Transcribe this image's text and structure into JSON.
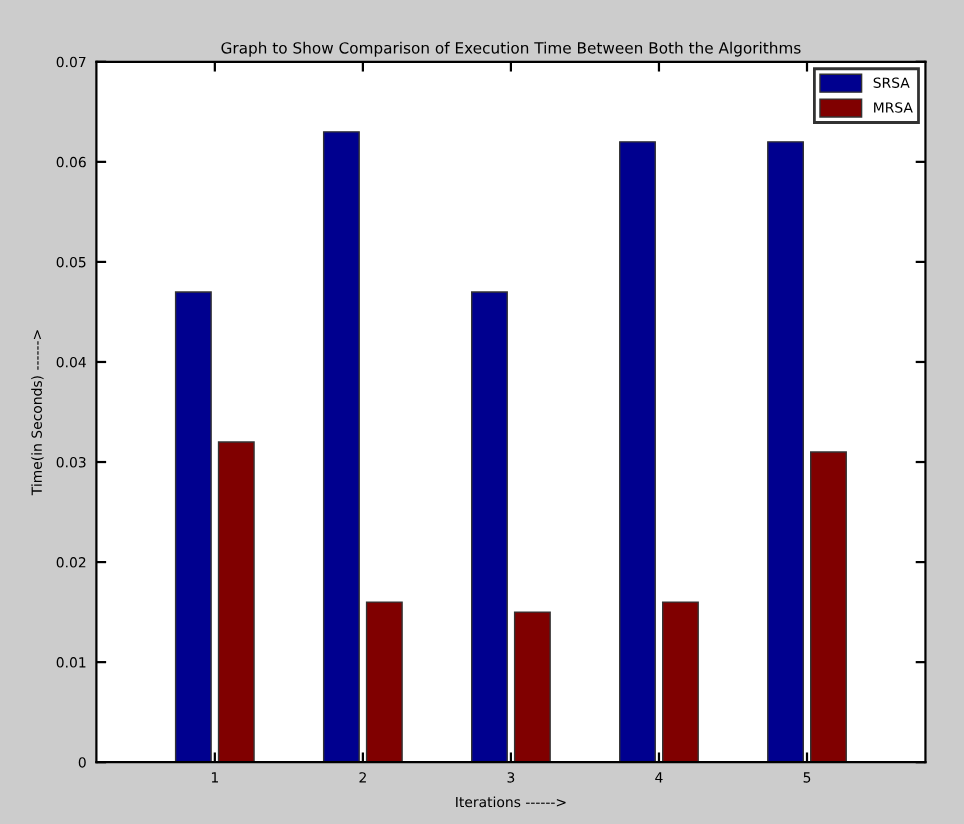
{
  "chart_data": {
    "type": "bar",
    "title": "Graph to Show Comparison of Execution Time Between Both the Algorithms",
    "xlabel": "Iterations ------>",
    "ylabel": "Time(in Seconds) ------>",
    "categories": [
      "1",
      "2",
      "3",
      "4",
      "5"
    ],
    "series": [
      {
        "name": "SRSA",
        "color": "#00008f",
        "values": [
          0.047,
          0.063,
          0.047,
          0.062,
          0.062
        ]
      },
      {
        "name": "MRSA",
        "color": "#800000",
        "values": [
          0.032,
          0.016,
          0.015,
          0.016,
          0.031
        ]
      }
    ],
    "ylim": [
      0,
      0.07
    ],
    "yticks": [
      {
        "value": 0,
        "label": "0"
      },
      0.01,
      0.02,
      0.03,
      0.04,
      0.05,
      0.06,
      0.07
    ],
    "grid": false,
    "legend": "top right"
  }
}
